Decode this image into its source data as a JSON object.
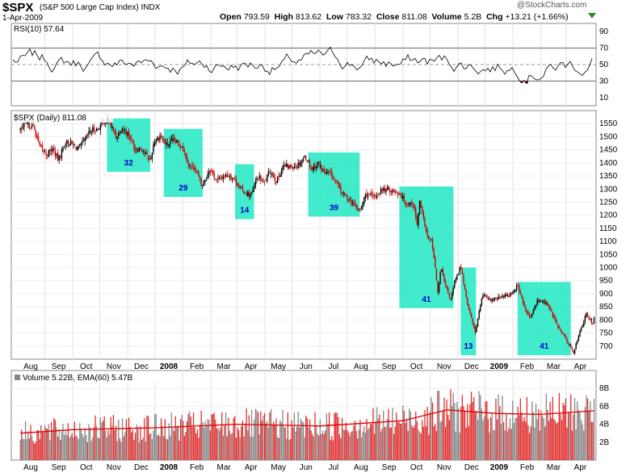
{
  "header": {
    "symbol": "$SPX",
    "description": "(S&P 500 Large Cap Index) INDX",
    "date": "1-Apr-2009",
    "open_label": "Open",
    "open": "793.59",
    "high_label": "High",
    "high": "813.62",
    "low_label": "Low",
    "low": "783.32",
    "close_label": "Close",
    "close": "811.08",
    "volume_label": "Volume",
    "volume": "5.2B",
    "chg_label": "Chg",
    "chg": "+13.21 (+1.66%)",
    "brand": "@StockCharts.com"
  },
  "colors": {
    "up": "#000000",
    "down": "#cc0000",
    "highlight": "#22e8c4",
    "box_label": "#0000cc",
    "ema": "#e00000",
    "rsi_fill": "#7a2b3b"
  },
  "chart_data": [
    {
      "type": "line",
      "name": "rsi-panel",
      "legend": "RSI(10) 57.64",
      "ylim": [
        0,
        100
      ],
      "y_ticks": [
        10,
        30,
        50,
        70,
        90
      ],
      "reference_lines": [
        30,
        50,
        70
      ]
    },
    {
      "type": "candlestick",
      "name": "price-panel",
      "legend": "$SPX (Daily) 811.08",
      "ylim": [
        650,
        1600
      ],
      "y_ticks": [
        700,
        750,
        800,
        850,
        900,
        950,
        1000,
        1050,
        1100,
        1150,
        1200,
        1250,
        1300,
        1350,
        1400,
        1450,
        1500,
        1550
      ],
      "x_ticks": [
        "Aug",
        "Sep",
        "Oct",
        "Nov",
        "Dec",
        "2008",
        "Feb",
        "Mar",
        "Apr",
        "May",
        "Jun",
        "Jul",
        "Aug",
        "Sep",
        "Oct",
        "Nov",
        "Dec",
        "2009",
        "Feb",
        "Mar",
        "Apr"
      ],
      "close_path": [
        [
          "2007-07-05",
          1525
        ],
        [
          "2007-07-13",
          1552
        ],
        [
          "2007-07-20",
          1534
        ],
        [
          "2007-07-27",
          1458
        ],
        [
          "2007-08-03",
          1433
        ],
        [
          "2007-08-10",
          1453
        ],
        [
          "2007-08-16",
          1411
        ],
        [
          "2007-08-24",
          1479
        ],
        [
          "2007-08-31",
          1473
        ],
        [
          "2007-09-07",
          1453
        ],
        [
          "2007-09-14",
          1484
        ],
        [
          "2007-09-21",
          1525
        ],
        [
          "2007-09-28",
          1527
        ],
        [
          "2007-10-05",
          1557
        ],
        [
          "2007-10-11",
          1561
        ],
        [
          "2007-10-19",
          1500
        ],
        [
          "2007-10-26",
          1535
        ],
        [
          "2007-11-02",
          1509
        ],
        [
          "2007-11-09",
          1453
        ],
        [
          "2007-11-16",
          1458
        ],
        [
          "2007-11-26",
          1407
        ],
        [
          "2007-11-30",
          1481
        ],
        [
          "2007-12-07",
          1504
        ],
        [
          "2007-12-14",
          1468
        ],
        [
          "2007-12-21",
          1484
        ],
        [
          "2007-12-31",
          1468
        ],
        [
          "2008-01-08",
          1390
        ],
        [
          "2008-01-15",
          1380
        ],
        [
          "2008-01-22",
          1310
        ],
        [
          "2008-01-31",
          1378
        ],
        [
          "2008-02-08",
          1331
        ],
        [
          "2008-02-15",
          1350
        ],
        [
          "2008-02-22",
          1353
        ],
        [
          "2008-02-29",
          1330
        ],
        [
          "2008-03-07",
          1293
        ],
        [
          "2008-03-17",
          1276
        ],
        [
          "2008-03-24",
          1349
        ],
        [
          "2008-03-31",
          1322
        ],
        [
          "2008-04-07",
          1372
        ],
        [
          "2008-04-14",
          1328
        ],
        [
          "2008-04-21",
          1388
        ],
        [
          "2008-04-30",
          1385
        ],
        [
          "2008-05-07",
          1392
        ],
        [
          "2008-05-16",
          1425
        ],
        [
          "2008-05-23",
          1375
        ],
        [
          "2008-05-30",
          1400
        ],
        [
          "2008-06-06",
          1360
        ],
        [
          "2008-06-13",
          1360
        ],
        [
          "2008-06-20",
          1317
        ],
        [
          "2008-06-27",
          1278
        ],
        [
          "2008-07-03",
          1262
        ],
        [
          "2008-07-15",
          1214
        ],
        [
          "2008-07-22",
          1282
        ],
        [
          "2008-07-31",
          1267
        ],
        [
          "2008-08-08",
          1296
        ],
        [
          "2008-08-15",
          1298
        ],
        [
          "2008-08-22",
          1292
        ],
        [
          "2008-08-29",
          1282
        ],
        [
          "2008-09-05",
          1242
        ],
        [
          "2008-09-12",
          1251
        ],
        [
          "2008-09-17",
          1156
        ],
        [
          "2008-09-19",
          1255
        ],
        [
          "2008-09-29",
          1106
        ],
        [
          "2008-10-03",
          1099
        ],
        [
          "2008-10-10",
          899
        ],
        [
          "2008-10-13",
          1003
        ],
        [
          "2008-10-17",
          940
        ],
        [
          "2008-10-24",
          877
        ],
        [
          "2008-10-28",
          941
        ],
        [
          "2008-11-04",
          1005
        ],
        [
          "2008-11-12",
          852
        ],
        [
          "2008-11-20",
          752
        ],
        [
          "2008-11-28",
          896
        ],
        [
          "2008-12-05",
          876
        ],
        [
          "2008-12-12",
          879
        ],
        [
          "2008-12-19",
          887
        ],
        [
          "2008-12-31",
          903
        ],
        [
          "2009-01-06",
          935
        ],
        [
          "2009-01-14",
          842
        ],
        [
          "2009-01-20",
          805
        ],
        [
          "2009-01-28",
          874
        ],
        [
          "2009-02-06",
          868
        ],
        [
          "2009-02-13",
          827
        ],
        [
          "2009-02-20",
          770
        ],
        [
          "2009-02-27",
          735
        ],
        [
          "2009-03-09",
          677
        ],
        [
          "2009-03-16",
          753
        ],
        [
          "2009-03-23",
          822
        ],
        [
          "2009-03-30",
          788
        ],
        [
          "2009-04-01",
          811
        ]
      ],
      "annotations": [
        {
          "label": "32",
          "x_start": "2007-10-09",
          "x_end": "2007-11-26",
          "y_top": 1570,
          "y_bottom": 1366
        },
        {
          "label": "29",
          "x_start": "2007-12-11",
          "x_end": "2008-01-23",
          "y_top": 1530,
          "y_bottom": 1270
        },
        {
          "label": "14",
          "x_start": "2008-02-28",
          "x_end": "2008-03-20",
          "y_top": 1395,
          "y_bottom": 1185
        },
        {
          "label": "39",
          "x_start": "2008-05-19",
          "x_end": "2008-07-15",
          "y_top": 1440,
          "y_bottom": 1195
        },
        {
          "label": "41",
          "x_start": "2008-08-28",
          "x_end": "2008-10-27",
          "y_top": 1310,
          "y_bottom": 845
        },
        {
          "label": "13",
          "x_start": "2008-11-04",
          "x_end": "2008-11-21",
          "y_top": 1000,
          "y_bottom": 665
        },
        {
          "label": "41",
          "x_start": "2009-01-06",
          "x_end": "2009-03-06",
          "y_top": 945,
          "y_bottom": 665
        }
      ]
    },
    {
      "type": "bar",
      "name": "volume-panel",
      "legend": "Volume 5.22B, EMA(60) 5.47B",
      "ylim": [
        0,
        10
      ],
      "y_ticks": [
        2,
        4,
        6,
        8
      ],
      "y_tick_labels": [
        "2B",
        "4B",
        "6B",
        "8B"
      ],
      "x_ticks": [
        "Aug",
        "Sep",
        "Oct",
        "Nov",
        "Dec",
        "2008",
        "Feb",
        "Mar",
        "Apr",
        "May",
        "Jun",
        "Jul",
        "Aug",
        "Sep",
        "Oct",
        "Nov",
        "Dec",
        "2009",
        "Feb",
        "Mar",
        "Apr"
      ],
      "ema_path": [
        [
          "2007-07-05",
          3.0
        ],
        [
          "2007-09-01",
          3.4
        ],
        [
          "2007-12-01",
          3.6
        ],
        [
          "2008-03-01",
          4.0
        ],
        [
          "2008-06-01",
          3.8
        ],
        [
          "2008-09-01",
          4.4
        ],
        [
          "2008-10-20",
          5.6
        ],
        [
          "2008-12-15",
          5.2
        ],
        [
          "2009-02-01",
          5.1
        ],
        [
          "2009-04-01",
          5.5
        ]
      ]
    }
  ]
}
